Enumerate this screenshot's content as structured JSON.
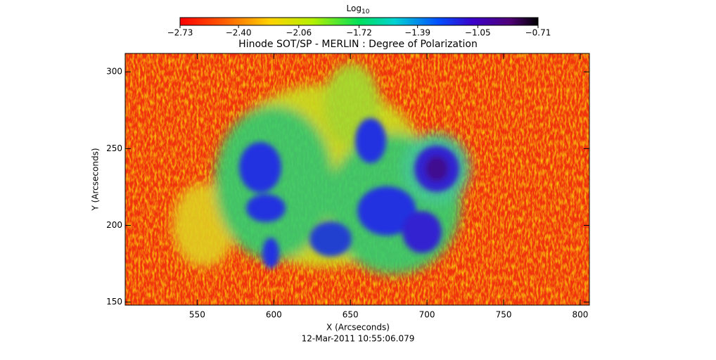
{
  "chart_data": {
    "type": "heatmap",
    "title": "Hinode SOT/SP - MERLIN : Degree of Polarization",
    "x_label": "X (Arcseconds)",
    "y_label": "Y (Arcseconds)",
    "footer": "12-Mar-2011 10:55:06.079",
    "colorbar_label": "Log",
    "colorbar_label_sub": "10",
    "colorbar_lim": [
      -2.73,
      -0.71
    ],
    "colorbar_ticks": [
      {
        "value": -2.73,
        "label": "−2.73"
      },
      {
        "value": -2.4,
        "label": "−2.40"
      },
      {
        "value": -2.06,
        "label": "−2.06"
      },
      {
        "value": -1.72,
        "label": "−1.72"
      },
      {
        "value": -1.39,
        "label": "−1.39"
      },
      {
        "value": -1.05,
        "label": "−1.05"
      },
      {
        "value": -0.71,
        "label": "−0.71"
      }
    ],
    "xlim": [
      503,
      806
    ],
    "ylim": [
      148,
      312
    ],
    "xticks": [
      550,
      600,
      650,
      700,
      750,
      800
    ],
    "yticks": [
      150,
      200,
      250,
      300
    ]
  }
}
